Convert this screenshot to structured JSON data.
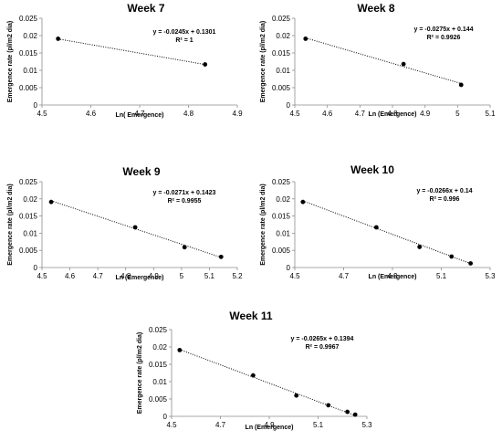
{
  "chart_data": [
    {
      "type": "scatter",
      "title": "Week 7",
      "xlabel": "Ln( Emergence)",
      "ylabel": "Emergence rate (pl/m2 dia)",
      "xlim": [
        4.5,
        4.9
      ],
      "ylim": [
        0,
        0.025
      ],
      "x_ticks": [
        "4.5",
        "4.6",
        "4.7",
        "4.8",
        "4.9"
      ],
      "y_ticks": [
        "0",
        "0.005",
        "0.01",
        "0.015",
        "0.02",
        "0.025"
      ],
      "equation": "y = -0.0245x + 0.1301",
      "r2": "R² = 1",
      "trendline": {
        "slope": -0.0245,
        "intercept": 0.1301
      },
      "points": [
        {
          "x": 4.533,
          "y": 0.0191
        },
        {
          "x": 4.834,
          "y": 0.0117
        }
      ]
    },
    {
      "type": "scatter",
      "title": "Week 8",
      "xlabel": "Ln (Emergence)",
      "ylabel": "Emergence rate (pl/m2 dia)",
      "xlim": [
        4.5,
        5.1
      ],
      "ylim": [
        0,
        0.025
      ],
      "x_ticks": [
        "4.5",
        "4.6",
        "4.7",
        "4.8",
        "4.9",
        "5",
        "5.1"
      ],
      "y_ticks": [
        "0",
        "0.005",
        "0.01",
        "0.015",
        "0.02",
        "0.025"
      ],
      "equation": "y = -0.0275x + 0.144",
      "r2": "R² = 0.9926",
      "trendline": {
        "slope": -0.0275,
        "intercept": 0.144
      },
      "points": [
        {
          "x": 4.533,
          "y": 0.0191
        },
        {
          "x": 4.834,
          "y": 0.0118
        },
        {
          "x": 5.011,
          "y": 0.0058
        }
      ]
    },
    {
      "type": "scatter",
      "title": "Week 9",
      "xlabel": "Ln (Emergence)",
      "ylabel": "Emergence rate (pl/m2 dia)",
      "xlim": [
        4.5,
        5.2
      ],
      "ylim": [
        0,
        0.025
      ],
      "x_ticks": [
        "4.5",
        "4.6",
        "4.7",
        "4.8",
        "4.9",
        "5",
        "5.1",
        "5.2"
      ],
      "y_ticks": [
        "0",
        "0.005",
        "0.01",
        "0.015",
        "0.02",
        "0.025"
      ],
      "equation": "y = -0.0271x + 0.1423",
      "r2": "R² = 0.9955",
      "trendline": {
        "slope": -0.0271,
        "intercept": 0.1423
      },
      "points": [
        {
          "x": 4.533,
          "y": 0.0191
        },
        {
          "x": 4.834,
          "y": 0.0117
        },
        {
          "x": 5.011,
          "y": 0.0059
        },
        {
          "x": 5.142,
          "y": 0.0031
        }
      ]
    },
    {
      "type": "scatter",
      "title": "Week 10",
      "xlabel": "Ln (Emergence)",
      "ylabel": "Emergence rate (pl/m2 dia)",
      "xlim": [
        4.5,
        5.3
      ],
      "ylim": [
        0,
        0.025
      ],
      "x_ticks": [
        "4.5",
        "4.7",
        "4.9",
        "5.1",
        "5.3"
      ],
      "y_ticks": [
        "0",
        "0.005",
        "0.01",
        "0.015",
        "0.02",
        "0.025"
      ],
      "equation": "y = -0.0266x + 0.14",
      "r2": "R² = 0.996",
      "trendline": {
        "slope": -0.0266,
        "intercept": 0.14
      },
      "points": [
        {
          "x": 4.533,
          "y": 0.0191
        },
        {
          "x": 4.834,
          "y": 0.0117
        },
        {
          "x": 5.011,
          "y": 0.006
        },
        {
          "x": 5.142,
          "y": 0.0032
        },
        {
          "x": 5.22,
          "y": 0.0012
        }
      ]
    },
    {
      "type": "scatter",
      "title": "Week 11",
      "xlabel": "Ln (Emergence)",
      "ylabel": "Emergence rate (pl/m2 dia)",
      "xlim": [
        4.5,
        5.3
      ],
      "ylim": [
        0,
        0.025
      ],
      "x_ticks": [
        "4.5",
        "4.7",
        "4.9",
        "5.1",
        "5.3"
      ],
      "y_ticks": [
        "0",
        "0.005",
        "0.01",
        "0.015",
        "0.02",
        "0.025"
      ],
      "equation": "y = -0.0265x + 0.1394",
      "r2": "R² = 0.9967",
      "trendline": {
        "slope": -0.0265,
        "intercept": 0.1394
      },
      "points": [
        {
          "x": 4.533,
          "y": 0.0191
        },
        {
          "x": 4.834,
          "y": 0.0118
        },
        {
          "x": 5.011,
          "y": 0.006
        },
        {
          "x": 5.142,
          "y": 0.0032
        },
        {
          "x": 5.22,
          "y": 0.0013
        },
        {
          "x": 5.252,
          "y": 0.0005
        }
      ]
    }
  ]
}
